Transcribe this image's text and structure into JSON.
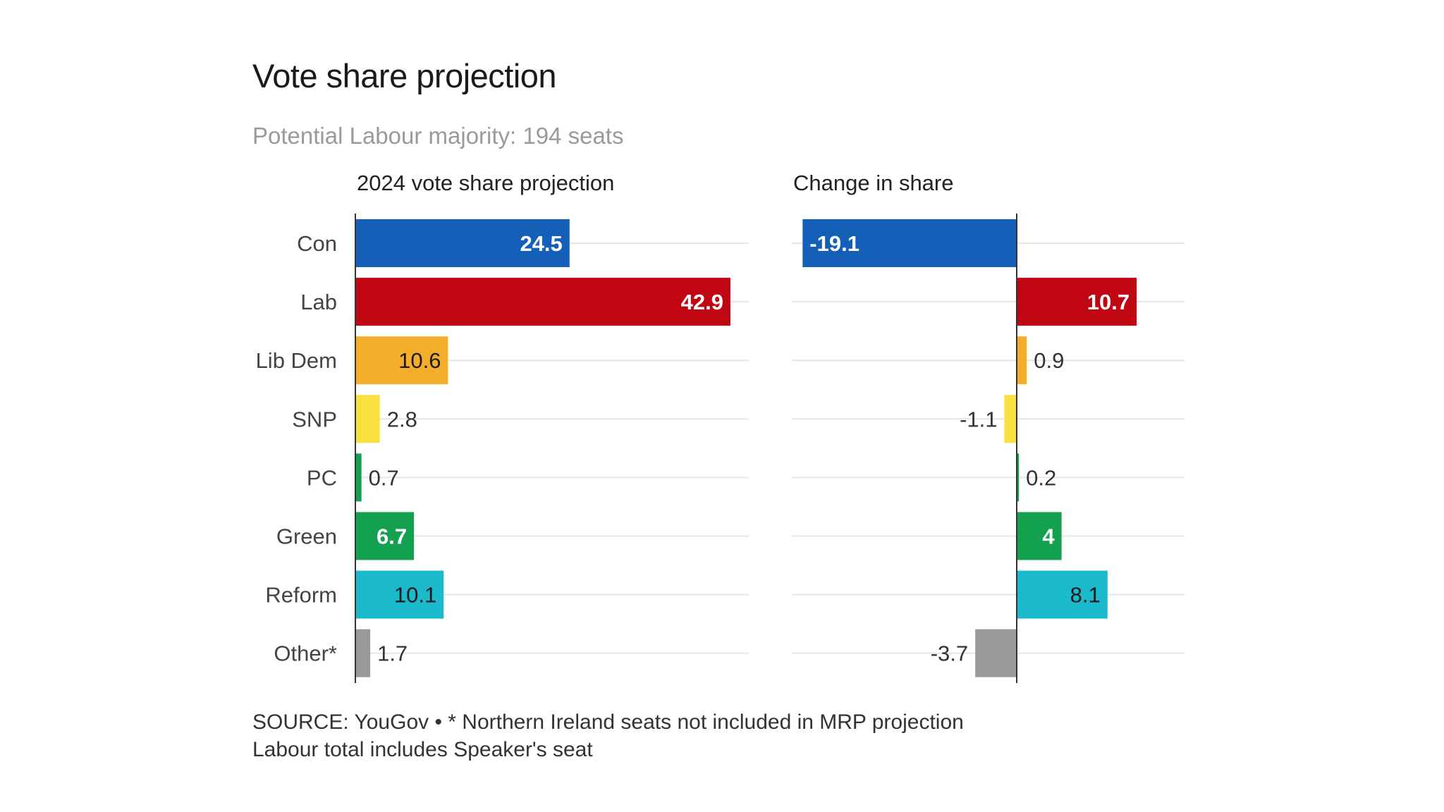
{
  "title": "Vote share projection",
  "subtitle": "Potential Labour majority: 194 seats",
  "footer": {
    "line1": "SOURCE: YouGov • * Northern Ireland seats not included in MRP projection",
    "line2": "Labour total includes Speaker's seat"
  },
  "chart_data": [
    {
      "type": "bar",
      "orientation": "horizontal",
      "title": "2024 vote share projection",
      "categories": [
        "Con",
        "Lab",
        "Lib Dem",
        "SNP",
        "PC",
        "Green",
        "Reform",
        "Other*"
      ],
      "values": [
        24.5,
        42.9,
        10.6,
        2.8,
        0.7,
        6.7,
        10.1,
        1.7
      ],
      "xlim": [
        0,
        45
      ],
      "grid": true
    },
    {
      "type": "bar",
      "orientation": "horizontal",
      "title": "Change in share",
      "categories": [
        "Con",
        "Lab",
        "Lib Dem",
        "SNP",
        "PC",
        "Green",
        "Reform",
        "Other*"
      ],
      "values": [
        -19.1,
        10.7,
        0.9,
        -1.1,
        0.2,
        4,
        8.1,
        -3.7
      ],
      "xlim": [
        -20,
        11.5
      ],
      "grid": true
    }
  ],
  "colors": [
    "#1460b8",
    "#c00613",
    "#f5ae2a",
    "#f8e03e",
    "#13a150",
    "#13a150",
    "#1bb9cc",
    "#999999"
  ],
  "label_colors": [
    "#ffffff",
    "#ffffff",
    "#1a1a1a",
    "#1a1a1a",
    "#1a1a1a",
    "#ffffff",
    "#1a1a1a",
    "#1a1a1a"
  ]
}
